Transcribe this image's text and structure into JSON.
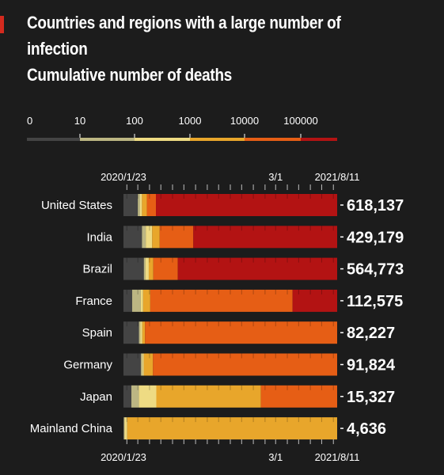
{
  "title_lines": [
    "Countries and regions with a large number of",
    "infection",
    "Cumulative number of deaths"
  ],
  "colors": {
    "accent": "#d42a1e",
    "background": "#1c1c1c",
    "text": "#ffffff",
    "row_divider": "#2a2a2a"
  },
  "legend": {
    "labels": [
      "0",
      "10",
      "100",
      "1000",
      "10000",
      "100000"
    ],
    "colors": [
      "#444444",
      "#bcb683",
      "#eedb83",
      "#e8a62b",
      "#e65e15",
      "#b31313"
    ]
  },
  "chart_data": {
    "type": "bar",
    "title": "Countries and regions with a large number of infection Cumulative number of deaths",
    "x_axis": {
      "start": "2020/1/23",
      "mid_label": "3/1",
      "end": "2021/8/11"
    },
    "categories": [
      "United States",
      "India",
      "Brazil",
      "France",
      "Spain",
      "Germany",
      "Japan",
      "Mainland China"
    ],
    "values": [
      618137,
      429179,
      564773,
      112575,
      82227,
      91824,
      15327,
      4636
    ],
    "category_legend": [
      "0",
      "10",
      "100",
      "1000",
      "10000",
      "100000"
    ],
    "series": [
      {
        "label": "United States",
        "value": 618137,
        "segments": [
          [
            "2020/1/23",
            "0"
          ],
          [
            "2020/3/1",
            "10"
          ],
          [
            "2020/3/7",
            "100"
          ],
          [
            "2020/3/12",
            "1000"
          ],
          [
            "2020/3/25",
            "10000"
          ],
          [
            "2020/4/18",
            "100000"
          ]
        ]
      },
      {
        "label": "India",
        "value": 429179,
        "segments": [
          [
            "2020/1/23",
            "0"
          ],
          [
            "2020/3/12",
            "10"
          ],
          [
            "2020/3/22",
            "100"
          ],
          [
            "2020/4/8",
            "1000"
          ],
          [
            "2020/4/28",
            "10000"
          ],
          [
            "2020/7/26",
            "100000"
          ]
        ]
      },
      {
        "label": "Brazil",
        "value": 564773,
        "segments": [
          [
            "2020/1/23",
            "0"
          ],
          [
            "2020/3/17",
            "10"
          ],
          [
            "2020/3/21",
            "100"
          ],
          [
            "2020/3/30",
            "1000"
          ],
          [
            "2020/4/11",
            "10000"
          ],
          [
            "2020/6/15",
            "100000"
          ]
        ]
      },
      {
        "label": "France",
        "value": 112575,
        "segments": [
          [
            "2020/1/23",
            "0"
          ],
          [
            "2020/2/15",
            "10"
          ],
          [
            "2020/3/9",
            "100"
          ],
          [
            "2020/3/15",
            "1000"
          ],
          [
            "2020/4/3",
            "10000"
          ],
          [
            "2021/4/15",
            "100000"
          ]
        ]
      },
      {
        "label": "Spain",
        "value": 82227,
        "segments": [
          [
            "2020/1/23",
            "0"
          ],
          [
            "2020/3/4",
            "10"
          ],
          [
            "2020/3/8",
            "100"
          ],
          [
            "2020/3/13",
            "1000"
          ],
          [
            "2020/3/20",
            "10000"
          ]
        ]
      },
      {
        "label": "Germany",
        "value": 91824,
        "segments": [
          [
            "2020/1/23",
            "0"
          ],
          [
            "2020/3/9",
            "10"
          ],
          [
            "2020/3/13",
            "100"
          ],
          [
            "2020/3/17",
            "1000"
          ],
          [
            "2020/4/10",
            "10000"
          ]
        ]
      },
      {
        "label": "Japan",
        "value": 15327,
        "segments": [
          [
            "2020/1/23",
            "0"
          ],
          [
            "2020/2/13",
            "10"
          ],
          [
            "2020/3/4",
            "100"
          ],
          [
            "2020/4/19",
            "1000"
          ],
          [
            "2021/1/21",
            "10000"
          ]
        ]
      },
      {
        "label": "Mainland China",
        "value": 4636,
        "segments": [
          [
            "2020/1/23",
            "0"
          ],
          [
            "2020/1/24",
            "10"
          ],
          [
            "2020/1/26",
            "100"
          ],
          [
            "2020/2/2",
            "1000"
          ]
        ]
      }
    ]
  }
}
